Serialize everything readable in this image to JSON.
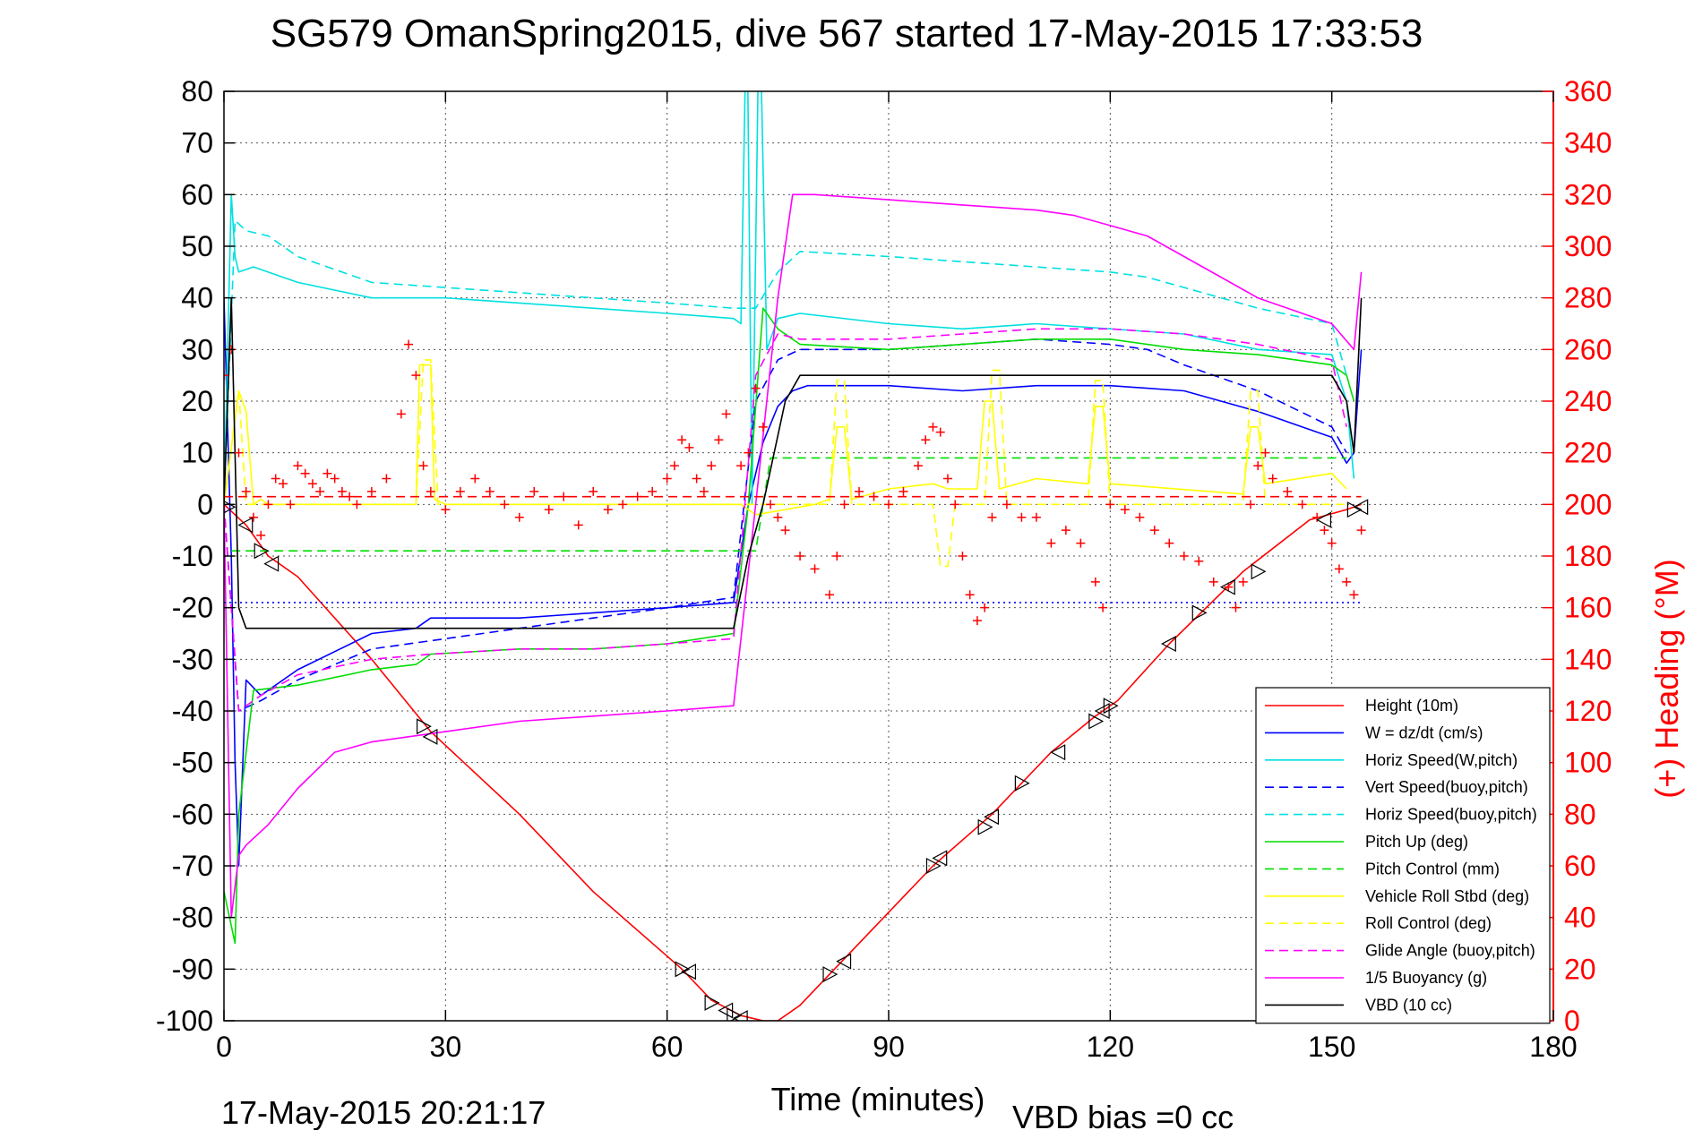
{
  "header": {
    "title": "SG579 OmanSpring2015, dive 567 started 17-May-2015 17:33:53"
  },
  "footer": {
    "timestamp": "17-May-2015 20:21:17",
    "vbd_bias": "VBD bias =0 cc"
  },
  "colors": {
    "right_axis": "#ff0000",
    "left_axis": "#000000"
  },
  "chart_data": {
    "type": "line",
    "xlabel": "Time (minutes)",
    "ylabel": "",
    "y2label": "(+) Heading (°M)",
    "xlim": [
      0,
      180
    ],
    "ylim": [
      -100,
      80
    ],
    "y2lim": [
      0,
      360
    ],
    "x_ticks": [
      "0",
      "30",
      "60",
      "90",
      "120",
      "150",
      "180"
    ],
    "y_ticks": [
      "80",
      "70",
      "60",
      "50",
      "40",
      "30",
      "20",
      "10",
      "0",
      "-10",
      "-20",
      "-30",
      "-40",
      "-50",
      "-60",
      "-70",
      "-80",
      "-90",
      "-100"
    ],
    "y2_ticks": [
      "360",
      "340",
      "320",
      "300",
      "280",
      "260",
      "240",
      "220",
      "200",
      "180",
      "160",
      "140",
      "120",
      "100",
      "80",
      "60",
      "40",
      "20",
      "0"
    ],
    "grid": true,
    "legend_position": "bottom-right",
    "series": [
      {
        "name": "Height (10m)",
        "color": "#ff0000",
        "style": "solid",
        "markers": "triangle",
        "x": [
          0,
          3,
          6,
          10,
          20,
          28,
          40,
          50,
          62,
          66,
          70,
          73,
          75,
          78,
          82,
          84,
          96,
          104,
          112,
          118,
          121,
          128,
          138,
          147,
          152,
          154
        ],
        "y": [
          0,
          -4,
          -10,
          -14,
          -30,
          -44,
          -60,
          -75,
          -90,
          -96,
          -99,
          -100,
          -100,
          -97,
          -91,
          -88,
          -70,
          -60,
          -48,
          -41,
          -38,
          -27,
          -13,
          -3,
          -1,
          0
        ]
      },
      {
        "name": "W = dz/dt (cm/s)",
        "color": "#0000ff",
        "style": "solid",
        "x": [
          0,
          1,
          1.5,
          2,
          3,
          5,
          10,
          20,
          26,
          28,
          40,
          50,
          60,
          69,
          71,
          73,
          75,
          77,
          79,
          90,
          100,
          110,
          120,
          130,
          140,
          150,
          152,
          153,
          154
        ],
        "y": [
          40,
          -10,
          -50,
          -70,
          -34,
          -37,
          -32,
          -25,
          -24,
          -22,
          -22,
          -21,
          -20,
          -19,
          0,
          12,
          19,
          22,
          23,
          23,
          22,
          23,
          23,
          22,
          18,
          13,
          8,
          10,
          30
        ]
      },
      {
        "name": "Horiz Speed(W,pitch)",
        "color": "#00e0e0",
        "style": "solid",
        "x": [
          0,
          1,
          1.5,
          2,
          4,
          10,
          20,
          30,
          40,
          50,
          60,
          69,
          70,
          70.8,
          71.5,
          72.5,
          73.5,
          75,
          78,
          90,
          100,
          110,
          120,
          130,
          140,
          150,
          152,
          153
        ],
        "y": [
          0,
          60,
          48,
          45,
          46,
          43,
          40,
          40,
          39,
          38,
          37,
          36,
          35,
          100,
          0,
          100,
          30,
          36,
          37,
          35,
          34,
          35,
          34,
          33,
          30,
          29,
          20,
          5
        ]
      },
      {
        "name": "Vert Speed(buoy,pitch)",
        "color": "#0000ff",
        "style": "dashed",
        "x": [
          0,
          2,
          5,
          10,
          20,
          30,
          40,
          50,
          60,
          69,
          72,
          75,
          78,
          90,
          100,
          110,
          120,
          125,
          130,
          140,
          150,
          152
        ],
        "y": [
          0,
          -40,
          -38,
          -34,
          -28,
          -26,
          -24,
          -22,
          -20,
          -18,
          20,
          28,
          30,
          30,
          31,
          32,
          31,
          30,
          27,
          22,
          15,
          10
        ]
      },
      {
        "name": "Horiz Speed(buoy,pitch)",
        "color": "#00e0e0",
        "style": "dashed",
        "x": [
          0,
          1.5,
          3,
          6,
          10,
          20,
          30,
          40,
          50,
          60,
          69,
          72,
          75,
          78,
          90,
          100,
          110,
          120,
          125,
          130,
          140,
          150,
          152
        ],
        "y": [
          0,
          55,
          53,
          52,
          48,
          43,
          42,
          41,
          40,
          39,
          38,
          38,
          45,
          49,
          48,
          47,
          46,
          45,
          44,
          42,
          38,
          35,
          25
        ]
      },
      {
        "name": "Pitch Up (deg)",
        "color": "#00dd00",
        "style": "solid",
        "x": [
          0,
          1.5,
          2,
          4,
          10,
          20,
          26,
          28,
          40,
          50,
          60,
          69,
          71,
          73,
          75,
          78,
          90,
          100,
          110,
          120,
          130,
          140,
          150,
          152,
          153
        ],
        "y": [
          -75,
          -85,
          -60,
          -36,
          -35,
          -32,
          -31,
          -29,
          -28,
          -28,
          -27,
          -25,
          0,
          38,
          34,
          31,
          30,
          31,
          32,
          32,
          30,
          29,
          27,
          25,
          20
        ]
      },
      {
        "name": "Pitch Control (mm)",
        "color": "#00dd00",
        "style": "dashed",
        "x": [
          1,
          5,
          30,
          60,
          70,
          72,
          74,
          76,
          140,
          150,
          152
        ],
        "y": [
          -9,
          -9,
          -9,
          -9,
          -9,
          -9,
          9,
          9,
          9,
          9,
          9
        ]
      },
      {
        "name": "Vehicle Roll Stbd (deg)",
        "color": "#ffff00",
        "style": "solid",
        "x": [
          0,
          2,
          3,
          4,
          5,
          6,
          26,
          26.5,
          28,
          28.5,
          30,
          60,
          70,
          72,
          80,
          82,
          83,
          84,
          85,
          90,
          96,
          98,
          102,
          103,
          104,
          105,
          110,
          117,
          118,
          119,
          120,
          138,
          139,
          140,
          141,
          150,
          152
        ],
        "y": [
          0,
          22,
          18,
          0,
          1,
          0,
          0,
          27,
          27,
          1,
          0,
          0,
          0,
          -2,
          0,
          1,
          15,
          15,
          1,
          3,
          4,
          3,
          3,
          20,
          20,
          3,
          5,
          4,
          19,
          19,
          4,
          2,
          15,
          15,
          4,
          6,
          3
        ]
      },
      {
        "name": "Roll Control (deg)",
        "color": "#ffff00",
        "style": "dashed",
        "x": [
          0,
          2,
          3,
          26,
          27,
          28,
          29,
          30,
          80,
          82,
          83,
          84,
          85,
          96,
          97,
          98,
          99,
          103,
          104,
          105,
          106,
          117,
          118,
          119,
          120,
          138,
          139,
          140,
          141,
          152
        ],
        "y": [
          0,
          22,
          0,
          0,
          28,
          28,
          0,
          0,
          0,
          0,
          24,
          24,
          0,
          0,
          -12,
          -12,
          0,
          0,
          26,
          26,
          0,
          0,
          24,
          24,
          0,
          0,
          22,
          22,
          0,
          0
        ]
      },
      {
        "name": "Glide Angle (buoy,pitch)",
        "color": "#ff00ff",
        "style": "dashed",
        "x": [
          0,
          2,
          5,
          10,
          20,
          28,
          40,
          50,
          60,
          69,
          72,
          75,
          78,
          90,
          100,
          110,
          120,
          130,
          140,
          150,
          152
        ],
        "y": [
          0,
          -40,
          -37,
          -33,
          -30,
          -29,
          -28,
          -28,
          -27,
          -26,
          25,
          33,
          32,
          32,
          33,
          34,
          34,
          33,
          31,
          28,
          15
        ]
      },
      {
        "name": "1/5 Buoyancy (g)",
        "color": "#ff00ff",
        "style": "solid",
        "x": [
          0,
          1,
          2,
          3,
          6,
          10,
          15,
          20,
          25,
          30,
          40,
          50,
          60,
          69,
          72,
          75,
          77,
          80,
          90,
          100,
          110,
          115,
          120,
          125,
          130,
          140,
          150,
          153,
          154
        ],
        "y": [
          0,
          -80,
          -68,
          -66,
          -62,
          -55,
          -48,
          -46,
          -45,
          -44,
          -42,
          -41,
          -40,
          -39,
          0,
          40,
          60,
          60,
          59,
          58,
          57,
          56,
          54,
          52,
          48,
          40,
          35,
          30,
          45
        ]
      },
      {
        "name": "VBD (10 cc)",
        "color": "#000000",
        "style": "solid",
        "x": [
          0,
          1,
          2,
          3,
          69,
          71,
          73,
          76,
          78,
          150,
          152,
          153,
          154
        ],
        "y": [
          0,
          40,
          -20,
          -24,
          -24,
          -10,
          0,
          20,
          25,
          25,
          20,
          10,
          40
        ]
      },
      {
        "name": "",
        "color": "#ff0000",
        "style": "dashed",
        "axis": "y2",
        "x": [
          0,
          154
        ],
        "y": [
          203,
          203
        ]
      },
      {
        "name": "",
        "color": "#0000ff",
        "style": "dotted",
        "x": [
          0,
          154
        ],
        "y": [
          -19,
          -19
        ]
      }
    ],
    "heading_points": {
      "color": "#ff0000",
      "marker": "+",
      "axis": "y2",
      "x": [
        0,
        1,
        2,
        3,
        4,
        5,
        6,
        7,
        8,
        9,
        10,
        11,
        12,
        13,
        14,
        15,
        16,
        17,
        18,
        20,
        22,
        24,
        25,
        26,
        27,
        28,
        30,
        32,
        34,
        36,
        38,
        40,
        42,
        44,
        46,
        48,
        50,
        52,
        54,
        56,
        58,
        60,
        61,
        62,
        63,
        64,
        65,
        66,
        67,
        68,
        70,
        71,
        72,
        73,
        74,
        75,
        76,
        78,
        80,
        82,
        83,
        84,
        86,
        88,
        90,
        92,
        94,
        95,
        96,
        97,
        98,
        99,
        100,
        101,
        102,
        103,
        104,
        106,
        108,
        110,
        112,
        114,
        116,
        118,
        119,
        120,
        122,
        124,
        126,
        128,
        130,
        132,
        134,
        136,
        137,
        138,
        139,
        140,
        141,
        142,
        144,
        146,
        148,
        149,
        150,
        151,
        152,
        153,
        154
      ],
      "y": [
        250,
        260,
        220,
        205,
        195,
        188,
        200,
        210,
        208,
        200,
        215,
        212,
        208,
        205,
        212,
        210,
        205,
        203,
        200,
        205,
        210,
        235,
        262,
        250,
        215,
        205,
        198,
        205,
        210,
        205,
        200,
        195,
        205,
        198,
        203,
        192,
        205,
        198,
        200,
        203,
        205,
        210,
        215,
        225,
        222,
        210,
        205,
        215,
        225,
        235,
        215,
        220,
        245,
        230,
        200,
        195,
        190,
        180,
        175,
        165,
        180,
        200,
        205,
        203,
        200,
        205,
        215,
        225,
        230,
        228,
        210,
        200,
        180,
        165,
        155,
        160,
        195,
        200,
        195,
        195,
        185,
        190,
        185,
        170,
        160,
        200,
        198,
        195,
        190,
        185,
        180,
        178,
        170,
        168,
        160,
        170,
        200,
        215,
        220,
        210,
        205,
        200,
        195,
        190,
        185,
        175,
        170,
        165,
        190
      ]
    },
    "triangle_markers": {
      "x": [
        0.5,
        3,
        5,
        6.5,
        27,
        28,
        62,
        63,
        66,
        68,
        69,
        70,
        82,
        84,
        96,
        97,
        103,
        104,
        108,
        113,
        118,
        119,
        120,
        128,
        132,
        136,
        140,
        149,
        153,
        154
      ],
      "y": [
        -0.5,
        -4,
        -9,
        -11.5,
        -43,
        -45,
        -90,
        -90.5,
        -96.5,
        -98,
        -99,
        -99.5,
        -91,
        -88.5,
        -70,
        -68.5,
        -62.5,
        -60.5,
        -54,
        -48,
        -42,
        -40,
        -39,
        -27,
        -21,
        -16,
        -13,
        -3,
        -1,
        -0.5
      ]
    }
  }
}
